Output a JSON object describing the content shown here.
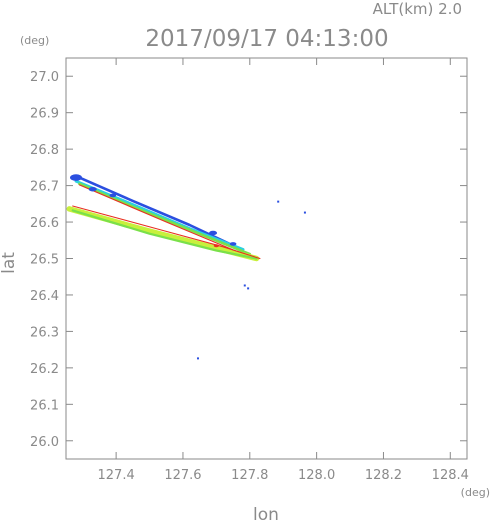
{
  "header": {
    "alt_label": "ALT(km) 2.0",
    "timestamp": "2017/09/17 04:13:00"
  },
  "chart_data": {
    "type": "scatter",
    "title": "2017/09/17 04:13:00",
    "subtitle": "ALT(km) 2.0",
    "xlabel": "lon",
    "ylabel": "lat",
    "x_unit": "(deg)",
    "y_unit": "(deg)",
    "xlim": [
      127.25,
      128.45
    ],
    "ylim": [
      25.95,
      27.05
    ],
    "x_ticks": [
      127.4,
      127.6,
      127.8,
      128.0,
      128.2,
      128.4
    ],
    "x_tick_labels": [
      "127.4",
      "127.6",
      "127.8",
      "128.0",
      "128.2",
      "128.4"
    ],
    "y_ticks": [
      26.0,
      26.1,
      26.2,
      26.3,
      26.4,
      26.5,
      26.6,
      26.7,
      26.8,
      26.9,
      27.0
    ],
    "y_tick_labels": [
      "26.0",
      "26.1",
      "26.2",
      "26.3",
      "26.4",
      "26.5",
      "26.6",
      "26.7",
      "26.8",
      "26.9",
      "27.0"
    ],
    "grid": false,
    "colors": {
      "blue": "#2b4fe0",
      "cyan": "#2ad0e0",
      "green": "#7ae04a",
      "lime": "#c8f03c",
      "yellow": "#f0e028",
      "red": "#e83020"
    },
    "bands": [
      {
        "name": "upper-echo-band",
        "layers": [
          {
            "color": "blue",
            "width": 2.6,
            "points": [
              [
                127.29,
                26.722
              ],
              [
                127.45,
                26.658
              ],
              [
                127.62,
                26.592
              ],
              [
                127.74,
                26.54
              ]
            ]
          },
          {
            "color": "cyan",
            "width": 2.8,
            "points": [
              [
                127.28,
                26.712
              ],
              [
                127.45,
                26.648
              ],
              [
                127.62,
                26.582
              ],
              [
                127.78,
                26.525
              ]
            ]
          },
          {
            "color": "green",
            "width": 2.6,
            "points": [
              [
                127.29,
                26.705
              ],
              [
                127.45,
                26.642
              ],
              [
                127.63,
                26.575
              ],
              [
                127.8,
                26.512
              ]
            ]
          },
          {
            "color": "red",
            "width": 1.1,
            "points": [
              [
                127.29,
                26.702
              ],
              [
                127.55,
                26.6
              ],
              [
                127.76,
                26.52
              ],
              [
                127.83,
                26.5
              ]
            ]
          }
        ]
      },
      {
        "name": "lower-echo-band",
        "layers": [
          {
            "color": "lime",
            "width": 5.5,
            "points": [
              [
                127.26,
                26.636
              ],
              [
                127.5,
                26.575
              ],
              [
                127.7,
                26.528
              ],
              [
                127.82,
                26.5
              ]
            ]
          },
          {
            "color": "green",
            "width": 2.2,
            "points": [
              [
                127.27,
                26.632
              ],
              [
                127.5,
                26.568
              ],
              [
                127.7,
                26.522
              ],
              [
                127.82,
                26.5
              ]
            ]
          },
          {
            "color": "red",
            "width": 1.1,
            "points": [
              [
                127.27,
                26.644
              ],
              [
                127.52,
                26.582
              ],
              [
                127.72,
                26.532
              ],
              [
                127.83,
                26.5
              ]
            ]
          }
        ]
      }
    ],
    "patches": [
      {
        "color": "blue",
        "x": 127.28,
        "y": 26.722,
        "r": 0.018
      },
      {
        "color": "blue",
        "x": 127.33,
        "y": 26.69,
        "r": 0.012
      },
      {
        "color": "blue",
        "x": 127.39,
        "y": 26.673,
        "r": 0.01
      },
      {
        "color": "blue",
        "x": 127.69,
        "y": 26.57,
        "r": 0.012
      },
      {
        "color": "blue",
        "x": 127.75,
        "y": 26.54,
        "r": 0.01
      },
      {
        "color": "red",
        "x": 127.7,
        "y": 26.535,
        "r": 0.008
      }
    ],
    "points": [
      {
        "color": "blue",
        "x": 127.885,
        "y": 26.656
      },
      {
        "color": "blue",
        "x": 127.965,
        "y": 26.626
      },
      {
        "color": "blue",
        "x": 127.795,
        "y": 26.418
      },
      {
        "color": "blue",
        "x": 127.785,
        "y": 26.426
      },
      {
        "color": "blue",
        "x": 127.645,
        "y": 26.226
      }
    ]
  }
}
